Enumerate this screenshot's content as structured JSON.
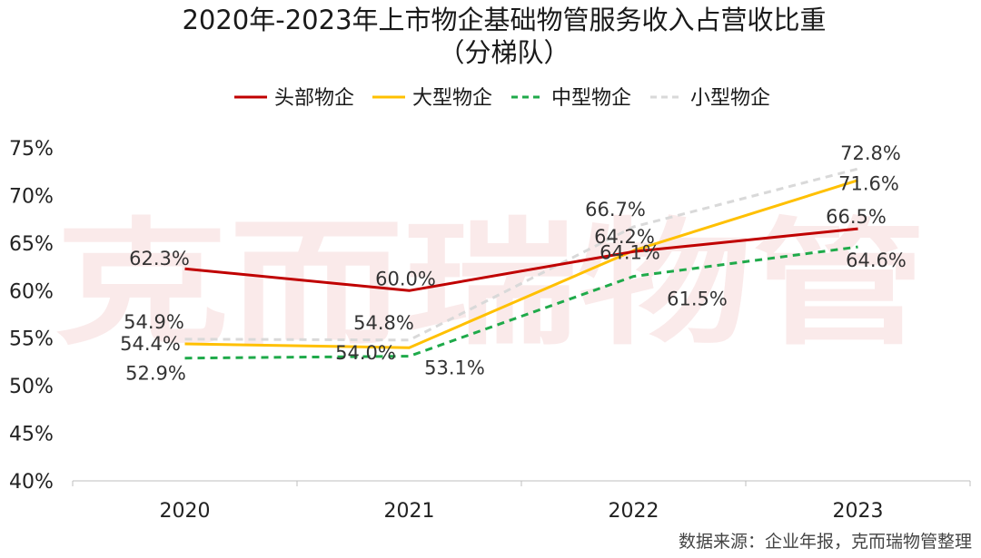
{
  "title_line1": "2020年-2023年上市物企基础物管服务收入占营收比重",
  "title_line2": "（分梯队）",
  "watermark": "克而瑞物管",
  "source": "数据来源：企业年报，克而瑞物管整理",
  "chart_data": {
    "type": "line",
    "categories": [
      "2020",
      "2021",
      "2022",
      "2023"
    ],
    "ylim": [
      40,
      75
    ],
    "yticks": [
      "40%",
      "45%",
      "50%",
      "55%",
      "60%",
      "65%",
      "70%",
      "75%"
    ],
    "legend_position": "top-center",
    "grid": false,
    "series": [
      {
        "name": "头部物企",
        "values": [
          62.3,
          60.0,
          64.1,
          66.5
        ],
        "labels": [
          "62.3%",
          "60.0%",
          "64.1%",
          "66.5%"
        ],
        "color": "#c00000",
        "dash": "solid"
      },
      {
        "name": "大型物企",
        "values": [
          54.4,
          54.0,
          64.2,
          71.6
        ],
        "labels": [
          "54.4%",
          "54.0%",
          "64.2%",
          "71.6%"
        ],
        "color": "#ffc000",
        "dash": "solid"
      },
      {
        "name": "中型物企",
        "values": [
          52.9,
          53.1,
          61.5,
          64.6
        ],
        "labels": [
          "52.9%",
          "53.1%",
          "61.5%",
          "64.6%"
        ],
        "color": "#1faa4a",
        "dash": "dashed"
      },
      {
        "name": "小型物企",
        "values": [
          54.9,
          54.8,
          66.7,
          72.8
        ],
        "labels": [
          "54.9%",
          "54.8%",
          "66.7%",
          "72.8%"
        ],
        "color": "#d9d9d9",
        "dash": "dashed"
      }
    ]
  }
}
